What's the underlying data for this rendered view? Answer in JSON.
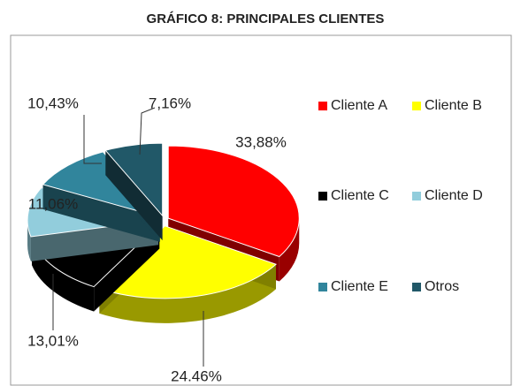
{
  "chart_data": {
    "type": "pie",
    "title": "GRÁFICO 8: PRINCIPALES CLIENTES",
    "categories": [
      "Cliente A",
      "Cliente B",
      "Cliente C",
      "Cliente D",
      "Cliente E",
      "Otros"
    ],
    "values": [
      33.88,
      24.46,
      13.01,
      11.06,
      10.43,
      7.16
    ],
    "value_labels": [
      "33,88%",
      "24.46%",
      "13,01%",
      "11,06%",
      "10,43%",
      "7,16%"
    ],
    "colors": [
      "#ff0000",
      "#ffff00",
      "#000000",
      "#92cddc",
      "#31859c",
      "#215868"
    ],
    "legend": "right"
  }
}
